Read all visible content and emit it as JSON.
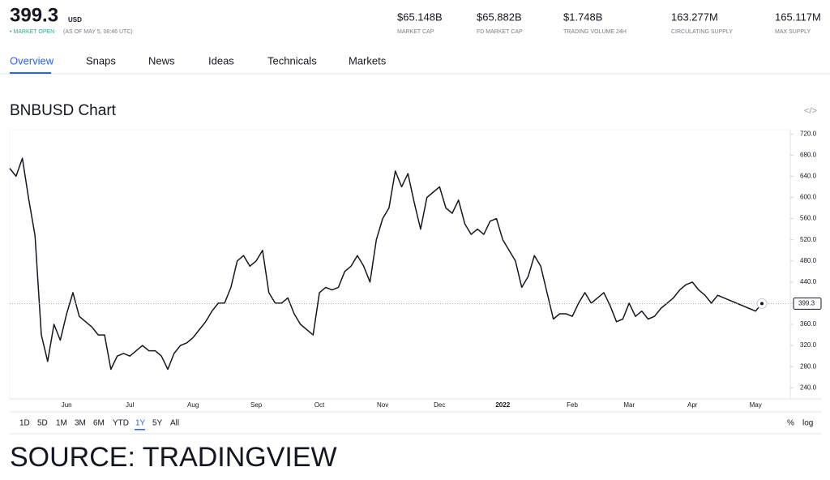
{
  "header": {
    "price": "399.3",
    "currency": "USD",
    "status": "• MARKET OPEN",
    "as_of": "(AS OF MAY 5, 08:46 UTC)",
    "stats": [
      {
        "value": "$65.148B",
        "label": "MARKET CAP"
      },
      {
        "value": "$65.882B",
        "label": "FD MARKET CAP"
      },
      {
        "value": "$1.748B",
        "label": "TRADING VOLUME 24H"
      },
      {
        "value": "163.277M",
        "label": "CIRCULATING SUPPLY"
      },
      {
        "value": "165.117M",
        "label": "MAX SUPPLY"
      }
    ]
  },
  "tabs": [
    "Overview",
    "Snaps",
    "News",
    "Ideas",
    "Technicals",
    "Markets"
  ],
  "ranges": [
    "1D",
    "5D",
    "1M",
    "3M",
    "6M",
    "YTD",
    "1Y",
    "5Y",
    "All"
  ],
  "scale_options": [
    "%",
    "log"
  ],
  "source": "SOURCE: TRADINGVIEW",
  "chart_data": {
    "type": "line",
    "title": "BNBUSD Chart",
    "color": "#131722",
    "grid": false,
    "categories": [
      null,
      null,
      null,
      null,
      null,
      null,
      null,
      null,
      null,
      "Jun",
      null,
      null,
      null,
      null,
      null,
      null,
      null,
      null,
      null,
      "Jul",
      null,
      null,
      null,
      null,
      null,
      null,
      null,
      null,
      null,
      "Aug",
      null,
      null,
      null,
      null,
      null,
      null,
      null,
      null,
      null,
      "Sep",
      null,
      null,
      null,
      null,
      null,
      null,
      null,
      null,
      null,
      "Oct",
      null,
      null,
      null,
      null,
      null,
      null,
      null,
      null,
      null,
      "Nov",
      null,
      null,
      null,
      null,
      null,
      null,
      null,
      null,
      "Dec",
      null,
      null,
      null,
      null,
      null,
      null,
      null,
      null,
      null,
      "2022",
      null,
      null,
      null,
      null,
      null,
      null,
      null,
      null,
      null,
      null,
      "Feb",
      null,
      null,
      null,
      null,
      null,
      null,
      null,
      null,
      "Mar",
      null,
      null,
      null,
      null,
      null,
      null,
      null,
      null,
      null,
      "Apr",
      null,
      null,
      null,
      null,
      null,
      null,
      null,
      null,
      null,
      "May",
      null
    ],
    "values": [
      655,
      640,
      674,
      597,
      528,
      340,
      290,
      360,
      330,
      380,
      420,
      375,
      365,
      355,
      340,
      340,
      275,
      300,
      305,
      300,
      310,
      320,
      310,
      310,
      300,
      275,
      305,
      320,
      325,
      335,
      350,
      365,
      385,
      400,
      400,
      430,
      480,
      490,
      470,
      480,
      500,
      420,
      400,
      400,
      410,
      380,
      360,
      350,
      340,
      420,
      430,
      425,
      430,
      460,
      470,
      490,
      470,
      440,
      520,
      560,
      580,
      650,
      620,
      645,
      590,
      540,
      600,
      610,
      620,
      580,
      570,
      595,
      550,
      530,
      540,
      530,
      555,
      560,
      520,
      500,
      480,
      430,
      450,
      490,
      470,
      420,
      370,
      380,
      380,
      375,
      400,
      420,
      400,
      410,
      420,
      395,
      365,
      370,
      400,
      375,
      385,
      370,
      375,
      390,
      400,
      410,
      425,
      435,
      440,
      425,
      415,
      400,
      415,
      410,
      405,
      400,
      395,
      390,
      385,
      399.3
    ],
    "ylim": [
      219,
      728
    ],
    "yticks": [
      {
        "value": 240,
        "label": "240.0"
      },
      {
        "value": 280,
        "label": "280.0"
      },
      {
        "value": 320,
        "label": "320.0"
      },
      {
        "value": 360,
        "label": "360.0"
      },
      {
        "value": 400,
        "label": "400.0"
      },
      {
        "value": 440,
        "label": "440.0"
      },
      {
        "value": 480,
        "label": "480.0"
      },
      {
        "value": 520,
        "label": "520.0"
      },
      {
        "value": 560,
        "label": "560.0"
      },
      {
        "value": 600,
        "label": "600.0"
      },
      {
        "value": 640,
        "label": "640.0"
      },
      {
        "value": 680,
        "label": "680.0"
      },
      {
        "value": 720,
        "label": "720.0"
      }
    ]
  }
}
